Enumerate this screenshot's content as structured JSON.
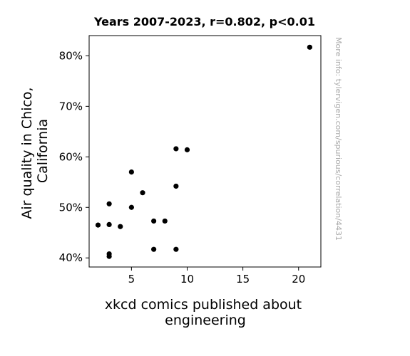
{
  "chart_data": {
    "type": "scatter",
    "title": "Years 2007-2023, r=0.802, p<0.01",
    "xlabel_lines": [
      "xkcd comics published about",
      "engineering"
    ],
    "ylabel_lines": [
      "Air quality in Chico,",
      "California"
    ],
    "watermark": "More info: tylervigen.com/spurious/correlation/4431",
    "xlim": [
      1.2,
      22
    ],
    "ylim": [
      38.2,
      84
    ],
    "x_ticks": [
      5,
      10,
      15,
      20
    ],
    "y_ticks": [
      40,
      50,
      60,
      70,
      80
    ],
    "y_tick_labels": [
      "40%",
      "50%",
      "60%",
      "70%",
      "80%"
    ],
    "x_tick_labels": [
      "5",
      "10",
      "15",
      "20"
    ],
    "grid": false,
    "marker_color": "#000000",
    "points": [
      {
        "x": 21,
        "y": 81.7
      },
      {
        "x": 9,
        "y": 61.6
      },
      {
        "x": 10,
        "y": 61.4
      },
      {
        "x": 5,
        "y": 57.0
      },
      {
        "x": 9,
        "y": 54.2
      },
      {
        "x": 6,
        "y": 52.9
      },
      {
        "x": 3,
        "y": 50.7
      },
      {
        "x": 5,
        "y": 50.0
      },
      {
        "x": 7,
        "y": 47.3
      },
      {
        "x": 8,
        "y": 47.3
      },
      {
        "x": 2,
        "y": 46.5
      },
      {
        "x": 3,
        "y": 46.6
      },
      {
        "x": 4,
        "y": 46.2
      },
      {
        "x": 7,
        "y": 41.7
      },
      {
        "x": 9,
        "y": 41.7
      },
      {
        "x": 3,
        "y": 40.8
      },
      {
        "x": 3,
        "y": 40.3
      }
    ]
  }
}
